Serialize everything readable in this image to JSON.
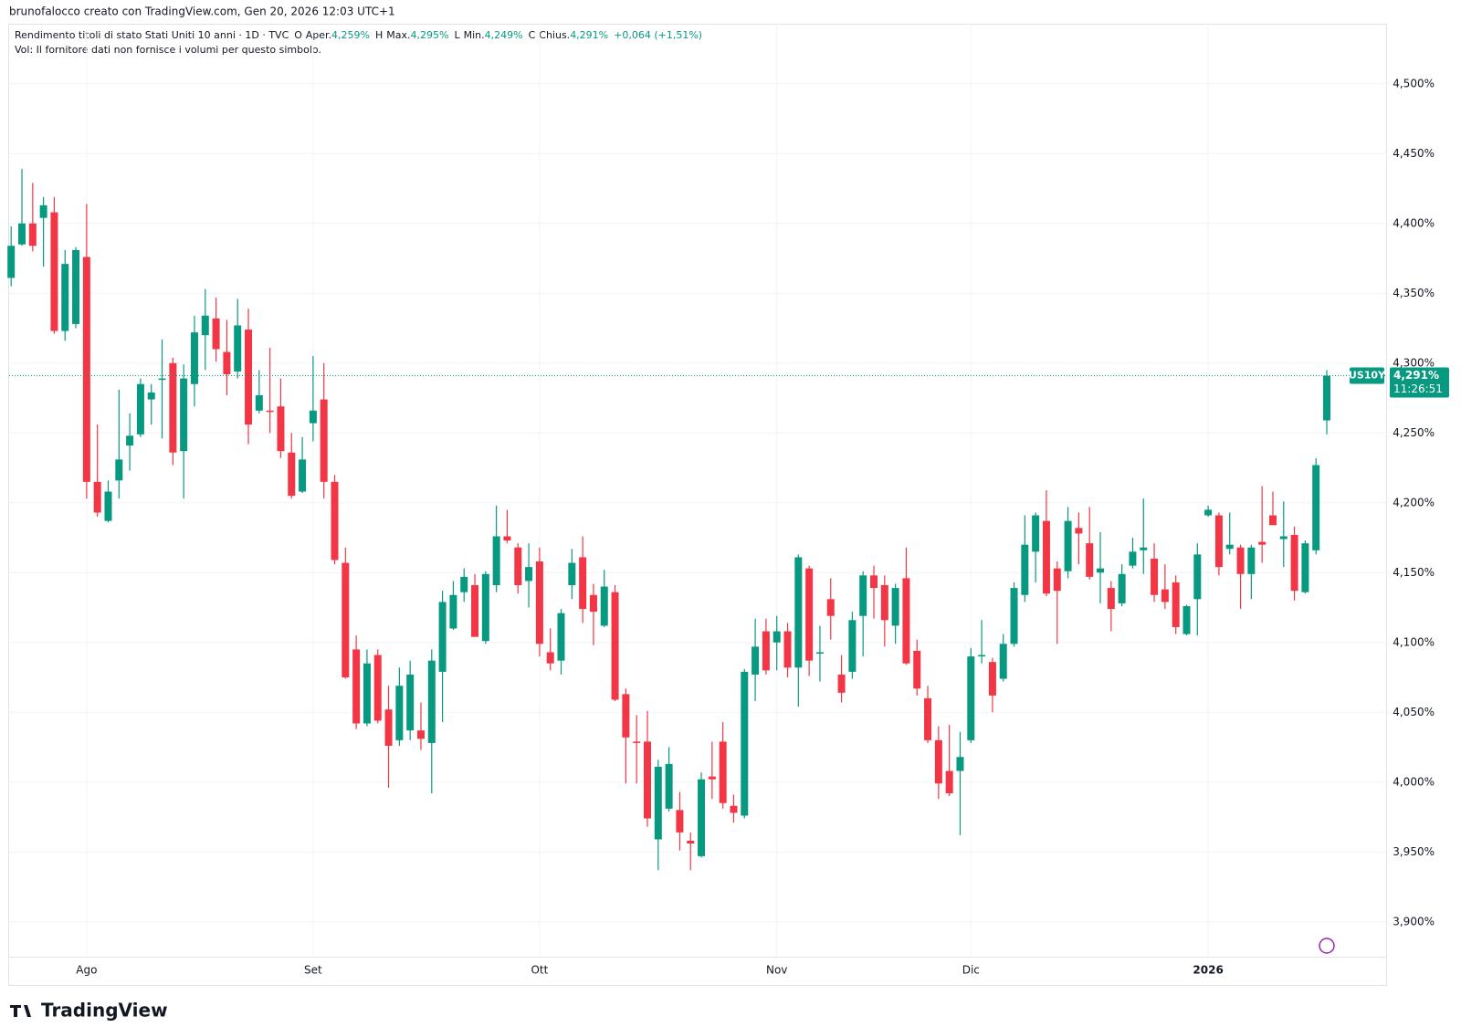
{
  "attribution": "brunofalocco creato con TradingView.com, Gen 20, 2026 12:03 UTC+1",
  "legend": {
    "symbol": "Rendimento titoli di stato Stati Uniti 10 anni · 1D · TVC",
    "fields": [
      {
        "key": "O",
        "label": "Aper.",
        "value": "4,259%"
      },
      {
        "key": "H",
        "label": "Max.",
        "value": "4,295%"
      },
      {
        "key": "L",
        "label": "Min.",
        "value": "4,249%"
      },
      {
        "key": "C",
        "label": "Chius.",
        "value": "4,291%"
      }
    ],
    "change": "+0,064 (+1,51%)",
    "volume_note": "Vol: Il fornitore dati non fornisce i volumi per questo simbolo."
  },
  "price_label": {
    "symbol": "US10Y",
    "price": "4,291%",
    "countdown": "11:26:51"
  },
  "brand": "TradingView",
  "chart_data": {
    "type": "candlestick",
    "up_color": "#089981",
    "down_color": "#f23645",
    "grid": true,
    "ylim": [
      3.875,
      4.543
    ],
    "yticks": [
      {
        "value": 3.9,
        "label": "3,900%"
      },
      {
        "value": 3.95,
        "label": "3,950%"
      },
      {
        "value": 4.0,
        "label": "4,000%"
      },
      {
        "value": 4.05,
        "label": "4,050%"
      },
      {
        "value": 4.1,
        "label": "4,100%"
      },
      {
        "value": 4.15,
        "label": "4,150%"
      },
      {
        "value": 4.2,
        "label": "4,200%"
      },
      {
        "value": 4.25,
        "label": "4,250%"
      },
      {
        "value": 4.3,
        "label": "4,300%"
      },
      {
        "value": 4.35,
        "label": "4,350%"
      },
      {
        "value": 4.4,
        "label": "4,400%"
      },
      {
        "value": 4.45,
        "label": "4,450%"
      },
      {
        "value": 4.5,
        "label": "4,500%"
      }
    ],
    "categories": [
      null,
      null,
      null,
      null,
      null,
      null,
      null,
      "Ago",
      null,
      null,
      null,
      null,
      null,
      null,
      null,
      null,
      null,
      null,
      null,
      null,
      null,
      null,
      null,
      null,
      null,
      null,
      null,
      null,
      "Set",
      null,
      null,
      null,
      null,
      null,
      null,
      null,
      null,
      null,
      null,
      null,
      null,
      null,
      null,
      null,
      null,
      null,
      null,
      null,
      null,
      "Ott",
      null,
      null,
      null,
      null,
      null,
      null,
      null,
      null,
      null,
      null,
      null,
      null,
      null,
      null,
      null,
      null,
      null,
      null,
      null,
      null,
      null,
      "Nov",
      null,
      null,
      null,
      null,
      null,
      null,
      null,
      null,
      null,
      null,
      null,
      null,
      null,
      null,
      null,
      null,
      null,
      "Dic",
      null,
      null,
      null,
      null,
      null,
      null,
      null,
      null,
      null,
      null,
      null,
      null,
      null,
      null,
      null,
      null,
      null,
      null,
      null,
      null,
      null,
      "2026",
      null,
      null,
      null,
      null,
      null,
      null,
      null,
      null,
      null,
      null,
      null
    ],
    "open": [
      4.361,
      4.385,
      4.4,
      4.404,
      4.408,
      4.323,
      4.328,
      4.376,
      4.215,
      4.187,
      4.216,
      4.241,
      4.249,
      4.274,
      4.288,
      4.3,
      4.237,
      4.285,
      4.32,
      4.332,
      4.308,
      4.294,
      4.324,
      4.266,
      4.266,
      4.269,
      4.236,
      4.208,
      4.257,
      4.274,
      4.215,
      4.157,
      4.095,
      4.042,
      4.091,
      4.052,
      4.03,
      4.037,
      4.037,
      4.028,
      4.079,
      4.11,
      4.136,
      4.141,
      4.101,
      4.141,
      4.176,
      4.168,
      4.144,
      4.158,
      4.093,
      4.087,
      4.141,
      4.161,
      4.134,
      4.112,
      4.136,
      4.063,
      4.029,
      4.029,
      3.959,
      3.981,
      3.98,
      3.958,
      3.947,
      4.004,
      4.029,
      3.983,
      3.976,
      4.077,
      4.108,
      4.1,
      4.108,
      4.082,
      4.153,
      4.092,
      4.131,
      4.077,
      4.079,
      4.119,
      4.148,
      4.141,
      4.112,
      4.146,
      4.094,
      4.06,
      4.03,
      4.008,
      4.008,
      4.03,
      4.09,
      4.086,
      4.074,
      4.099,
      4.134,
      4.165,
      4.187,
      4.153,
      4.151,
      4.182,
      4.171,
      4.15,
      4.139,
      4.128,
      4.155,
      4.166,
      4.16,
      4.138,
      4.143,
      4.106,
      4.131,
      4.191,
      4.191,
      4.167,
      4.168,
      4.149,
      4.172,
      4.191,
      4.174,
      4.177,
      4.136,
      4.166,
      4.259
    ],
    "high": [
      4.398,
      4.439,
      4.429,
      4.419,
      4.419,
      4.381,
      4.383,
      4.414,
      4.256,
      4.216,
      4.281,
      4.264,
      4.289,
      4.285,
      4.317,
      4.304,
      4.299,
      4.334,
      4.353,
      4.347,
      4.331,
      4.346,
      4.339,
      4.295,
      4.311,
      4.289,
      4.25,
      4.247,
      4.305,
      4.3,
      4.22,
      4.168,
      4.105,
      4.095,
      4.095,
      4.069,
      4.082,
      4.087,
      4.057,
      4.095,
      4.137,
      4.144,
      4.153,
      4.149,
      4.151,
      4.198,
      4.195,
      4.171,
      4.171,
      4.168,
      4.11,
      4.124,
      4.167,
      4.176,
      4.142,
      4.152,
      4.141,
      4.067,
      4.048,
      4.051,
      4.016,
      4.025,
      3.993,
      3.964,
      4.007,
      4.029,
      4.043,
      3.991,
      4.081,
      4.117,
      4.117,
      4.119,
      4.114,
      4.163,
      4.155,
      4.112,
      4.146,
      4.091,
      4.122,
      4.151,
      4.155,
      4.148,
      4.142,
      4.168,
      4.102,
      4.069,
      4.04,
      4.041,
      4.036,
      4.096,
      4.116,
      4.089,
      4.106,
      4.143,
      4.191,
      4.193,
      4.209,
      4.158,
      4.197,
      4.193,
      4.197,
      4.179,
      4.144,
      4.156,
      4.175,
      4.203,
      4.171,
      4.156,
      4.148,
      4.127,
      4.171,
      4.198,
      4.193,
      4.193,
      4.17,
      4.17,
      4.212,
      4.208,
      4.201,
      4.183,
      4.173,
      4.232,
      4.295
    ],
    "low": [
      4.355,
      4.384,
      4.38,
      4.369,
      4.321,
      4.316,
      4.325,
      4.203,
      4.19,
      4.186,
      4.203,
      4.223,
      4.247,
      4.256,
      4.246,
      4.227,
      4.203,
      4.269,
      4.295,
      4.301,
      4.277,
      4.289,
      4.242,
      4.264,
      4.25,
      4.232,
      4.203,
      4.207,
      4.244,
      4.203,
      4.156,
      4.074,
      4.038,
      4.04,
      4.042,
      3.996,
      4.026,
      4.03,
      4.023,
      3.992,
      4.043,
      4.109,
      4.129,
      4.104,
      4.099,
      4.136,
      4.171,
      4.135,
      4.125,
      4.09,
      4.08,
      4.077,
      4.131,
      4.114,
      4.098,
      4.111,
      4.058,
      3.999,
      3.999,
      3.968,
      3.937,
      3.979,
      3.951,
      3.937,
      3.946,
      3.988,
      3.981,
      3.971,
      3.974,
      4.058,
      4.077,
      4.08,
      4.075,
      4.054,
      4.076,
      4.072,
      4.102,
      4.057,
      4.074,
      4.09,
      4.117,
      4.097,
      4.099,
      4.084,
      4.062,
      4.028,
      3.988,
      3.99,
      3.962,
      4.028,
      4.085,
      4.05,
      4.072,
      4.097,
      4.129,
      4.143,
      4.133,
      4.099,
      4.146,
      4.156,
      4.145,
      4.128,
      4.108,
      4.126,
      4.153,
      4.149,
      4.129,
      4.124,
      4.106,
      4.105,
      4.105,
      4.19,
      4.148,
      4.163,
      4.124,
      4.131,
      4.157,
      4.184,
      4.154,
      4.13,
      4.135,
      4.163,
      4.249
    ],
    "close": [
      4.384,
      4.4,
      4.384,
      4.413,
      4.323,
      4.371,
      4.381,
      4.215,
      4.193,
      4.208,
      4.231,
      4.248,
      4.285,
      4.279,
      4.289,
      4.236,
      4.289,
      4.322,
      4.334,
      4.31,
      4.292,
      4.327,
      4.256,
      4.277,
      4.265,
      4.237,
      4.205,
      4.231,
      4.266,
      4.215,
      4.159,
      4.075,
      4.042,
      4.085,
      4.044,
      4.026,
      4.069,
      4.077,
      4.031,
      4.087,
      4.129,
      4.134,
      4.147,
      4.104,
      4.149,
      4.176,
      4.173,
      4.141,
      4.154,
      4.099,
      4.085,
      4.121,
      4.157,
      4.124,
      4.122,
      4.14,
      4.059,
      4.032,
      4.028,
      3.974,
      4.011,
      4.013,
      3.964,
      3.956,
      4.002,
      4.002,
      3.985,
      3.978,
      4.079,
      4.097,
      4.08,
      4.108,
      4.082,
      4.161,
      4.087,
      4.093,
      4.119,
      4.064,
      4.116,
      4.148,
      4.139,
      4.116,
      4.139,
      4.085,
      4.067,
      4.03,
      3.999,
      3.992,
      4.018,
      4.09,
      4.091,
      4.062,
      4.099,
      4.139,
      4.17,
      4.191,
      4.135,
      4.137,
      4.187,
      4.178,
      4.147,
      4.153,
      4.124,
      4.149,
      4.165,
      4.168,
      4.134,
      4.129,
      4.111,
      4.126,
      4.163,
      4.195,
      4.154,
      4.17,
      4.149,
      4.168,
      4.17,
      4.184,
      4.176,
      4.137,
      4.171,
      4.227,
      4.291
    ]
  }
}
